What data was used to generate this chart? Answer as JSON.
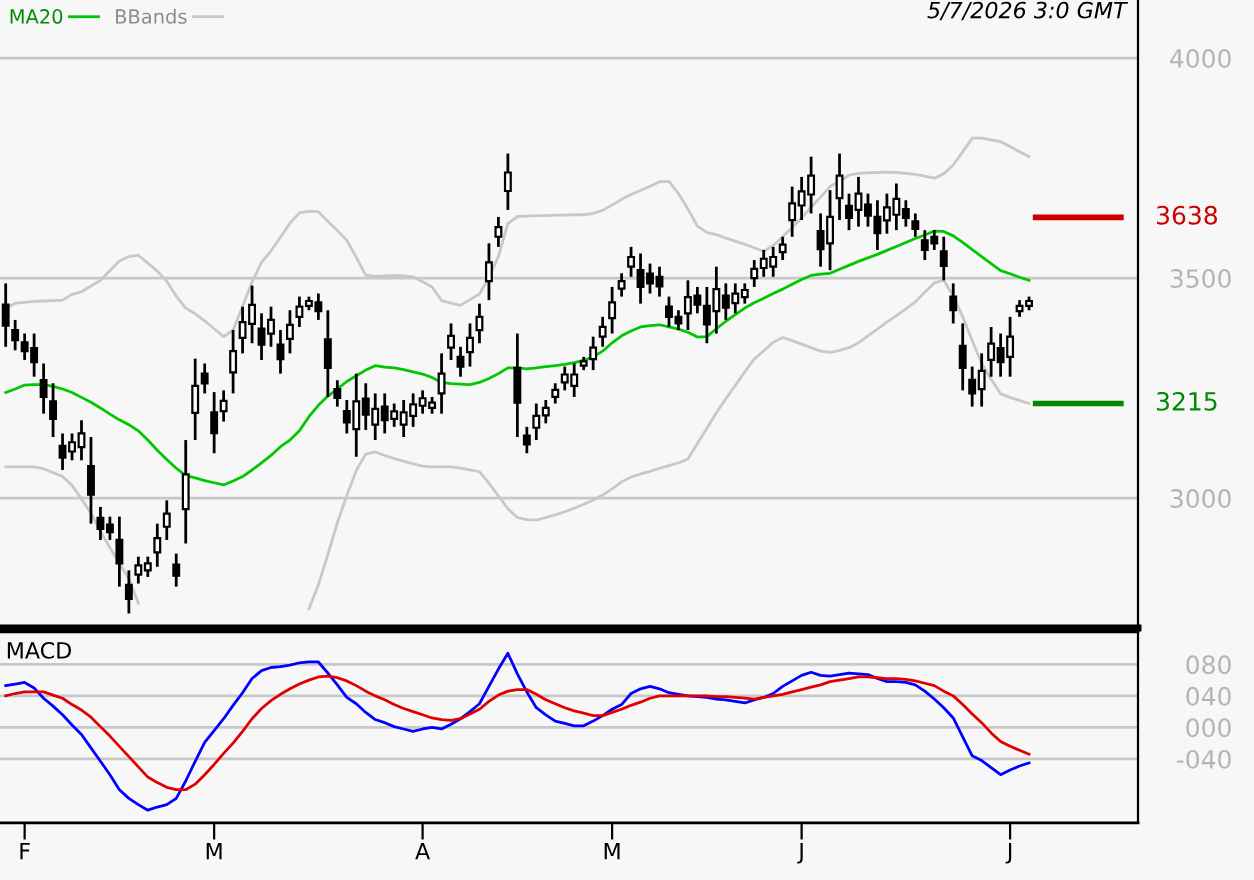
{
  "chart_data": [
    {
      "type": "candlestick",
      "categories": [
        null,
        null,
        null,
        null,
        null,
        null,
        null,
        null,
        null,
        null,
        null,
        null,
        null,
        null,
        null,
        null,
        null,
        null,
        null,
        null,
        null,
        null,
        null,
        null,
        null,
        null,
        null,
        null,
        null,
        null,
        null,
        null,
        null,
        null,
        null,
        null,
        null,
        null,
        null,
        null,
        null,
        null,
        null,
        null,
        null,
        null,
        null,
        null,
        null,
        null,
        null,
        null,
        null,
        null,
        null,
        null,
        null,
        null,
        null,
        null,
        null,
        null,
        null,
        null,
        null,
        null,
        null,
        null,
        null,
        null,
        null,
        null,
        null,
        null,
        null,
        null,
        null,
        null,
        null,
        null,
        null,
        null,
        null,
        null,
        null,
        null,
        null,
        null,
        null,
        null,
        null,
        null,
        null,
        null,
        null,
        null,
        null,
        null,
        null,
        null,
        null,
        null,
        null,
        null,
        null,
        null,
        null,
        null,
        null
      ],
      "ohlc": [
        [
          3440,
          3488,
          3344,
          3392
        ],
        [
          3382,
          3405,
          3336,
          3359
        ],
        [
          3354,
          3374,
          3314,
          3334
        ],
        [
          3341,
          3374,
          3276,
          3309
        ],
        [
          3268,
          3306,
          3192,
          3230
        ],
        [
          3220,
          3261,
          3139,
          3180
        ],
        [
          3119,
          3147,
          3064,
          3092
        ],
        [
          3106,
          3147,
          3086,
          3127
        ],
        [
          3116,
          3177,
          3086,
          3147
        ],
        [
          3073,
          3139,
          2942,
          3008
        ],
        [
          2955,
          2980,
          2905,
          2930
        ],
        [
          2940,
          2958,
          2905,
          2923
        ],
        [
          2905,
          2958,
          2799,
          2852
        ],
        [
          2803,
          2836,
          2738,
          2771
        ],
        [
          2826,
          2867,
          2806,
          2847
        ],
        [
          2836,
          2867,
          2821,
          2852
        ],
        [
          2877,
          2942,
          2844,
          2909
        ],
        [
          2935,
          2995,
          2905,
          2965
        ],
        [
          2849,
          2874,
          2799,
          2824
        ],
        [
          2975,
          3132,
          2897,
          3054
        ],
        [
          3194,
          3317,
          3132,
          3255
        ],
        [
          3283,
          3306,
          3238,
          3261
        ],
        [
          3195,
          3241,
          3102,
          3148
        ],
        [
          3198,
          3245,
          3174,
          3221
        ],
        [
          3286,
          3382,
          3238,
          3334
        ],
        [
          3364,
          3435,
          3329,
          3400
        ],
        [
          3396,
          3483,
          3352,
          3439
        ],
        [
          3385,
          3420,
          3314,
          3349
        ],
        [
          3374,
          3435,
          3344,
          3405
        ],
        [
          3349,
          3382,
          3283,
          3316
        ],
        [
          3362,
          3427,
          3329,
          3394
        ],
        [
          3412,
          3458,
          3389,
          3435
        ],
        [
          3437,
          3458,
          3427,
          3448
        ],
        [
          3445,
          3465,
          3405,
          3425
        ],
        [
          3361,
          3427,
          3230,
          3296
        ],
        [
          3248,
          3268,
          3208,
          3228
        ],
        [
          3198,
          3223,
          3147,
          3172
        ],
        [
          3157,
          3283,
          3094,
          3220
        ],
        [
          3226,
          3261,
          3155,
          3190
        ],
        [
          3167,
          3238,
          3132,
          3203
        ],
        [
          3208,
          3238,
          3147,
          3177
        ],
        [
          3180,
          3215,
          3162,
          3197
        ],
        [
          3167,
          3223,
          3139,
          3195
        ],
        [
          3187,
          3238,
          3162,
          3213
        ],
        [
          3210,
          3245,
          3192,
          3227
        ],
        [
          3205,
          3230,
          3192,
          3217
        ],
        [
          3238,
          3329,
          3192,
          3283
        ],
        [
          3342,
          3397,
          3314,
          3369
        ],
        [
          3321,
          3344,
          3276,
          3299
        ],
        [
          3332,
          3397,
          3299,
          3364
        ],
        [
          3382,
          3442,
          3352,
          3412
        ],
        [
          3493,
          3579,
          3450,
          3536
        ],
        [
          3594,
          3639,
          3571,
          3616
        ],
        [
          3698,
          3783,
          3655,
          3740
        ],
        [
          3296,
          3374,
          3139,
          3217
        ],
        [
          3142,
          3162,
          3102,
          3122
        ],
        [
          3160,
          3215,
          3132,
          3187
        ],
        [
          3188,
          3223,
          3170,
          3205
        ],
        [
          3230,
          3261,
          3215,
          3246
        ],
        [
          3263,
          3299,
          3245,
          3281
        ],
        [
          3255,
          3306,
          3230,
          3281
        ],
        [
          3301,
          3321,
          3291,
          3311
        ],
        [
          3316,
          3367,
          3291,
          3342
        ],
        [
          3367,
          3412,
          3344,
          3389
        ],
        [
          3409,
          3480,
          3374,
          3445
        ],
        [
          3476,
          3511,
          3458,
          3493
        ],
        [
          3526,
          3571,
          3503,
          3548
        ],
        [
          3518,
          3556,
          3442,
          3480
        ],
        [
          3510,
          3533,
          3465,
          3488
        ],
        [
          3503,
          3526,
          3458,
          3481
        ],
        [
          3435,
          3458,
          3389,
          3412
        ],
        [
          3412,
          3427,
          3382,
          3397
        ],
        [
          3420,
          3495,
          3382,
          3457
        ],
        [
          3460,
          3480,
          3420,
          3440
        ],
        [
          3437,
          3480,
          3352,
          3395
        ],
        [
          3425,
          3526,
          3374,
          3475
        ],
        [
          3460,
          3488,
          3405,
          3433
        ],
        [
          3443,
          3488,
          3420,
          3465
        ],
        [
          3457,
          3488,
          3442,
          3473
        ],
        [
          3500,
          3541,
          3480,
          3521
        ],
        [
          3523,
          3564,
          3503,
          3544
        ],
        [
          3526,
          3571,
          3503,
          3548
        ],
        [
          3559,
          3594,
          3541,
          3576
        ],
        [
          3632,
          3708,
          3594,
          3670
        ],
        [
          3665,
          3730,
          3632,
          3697
        ],
        [
          3690,
          3776,
          3647,
          3733
        ],
        [
          3607,
          3647,
          3526,
          3566
        ],
        [
          3579,
          3700,
          3518,
          3639
        ],
        [
          3682,
          3783,
          3632,
          3733
        ],
        [
          3664,
          3692,
          3609,
          3637
        ],
        [
          3655,
          3730,
          3617,
          3692
        ],
        [
          3667,
          3692,
          3617,
          3642
        ],
        [
          3639,
          3677,
          3564,
          3602
        ],
        [
          3631,
          3692,
          3601,
          3661
        ],
        [
          3644,
          3715,
          3609,
          3680
        ],
        [
          3657,
          3677,
          3617,
          3637
        ],
        [
          3629,
          3647,
          3594,
          3612
        ],
        [
          3586,
          3609,
          3541,
          3564
        ],
        [
          3594,
          3609,
          3564,
          3579
        ],
        [
          3561,
          3594,
          3495,
          3528
        ],
        [
          3458,
          3488,
          3397,
          3427
        ],
        [
          3346,
          3397,
          3245,
          3296
        ],
        [
          3269,
          3299,
          3208,
          3238
        ],
        [
          3248,
          3329,
          3208,
          3289
        ],
        [
          3314,
          3389,
          3276,
          3351
        ],
        [
          3341,
          3374,
          3276,
          3309
        ],
        [
          3321,
          3412,
          3276,
          3367
        ],
        [
          3425,
          3450,
          3412,
          3437
        ],
        [
          3437,
          3458,
          3427,
          3448
        ]
      ],
      "series": [
        {
          "name": "MA20",
          "type": "line",
          "color": "#00c800",
          "values": [
            3240,
            3248,
            3257,
            3258,
            3258,
            3254,
            3248,
            3240,
            3229,
            3218,
            3205,
            3191,
            3178,
            3167,
            3153,
            3132,
            3109,
            3088,
            3068,
            3051,
            3046,
            3040,
            3035,
            3030,
            3039,
            3049,
            3064,
            3080,
            3097,
            3117,
            3132,
            3153,
            3185,
            3211,
            3232,
            3248,
            3265,
            3278,
            3291,
            3301,
            3298,
            3296,
            3292,
            3287,
            3282,
            3274,
            3263,
            3260,
            3259,
            3258,
            3263,
            3272,
            3283,
            3296,
            3296,
            3294,
            3296,
            3299,
            3301,
            3304,
            3308,
            3313,
            3321,
            3334,
            3353,
            3369,
            3380,
            3389,
            3392,
            3394,
            3389,
            3384,
            3377,
            3366,
            3367,
            3385,
            3402,
            3417,
            3432,
            3444,
            3454,
            3465,
            3475,
            3486,
            3497,
            3506,
            3509,
            3511,
            3520,
            3529,
            3538,
            3546,
            3554,
            3563,
            3572,
            3581,
            3590,
            3598,
            3607,
            3606,
            3596,
            3581,
            3565,
            3549,
            3533,
            3517,
            3510,
            3502,
            3495
          ]
        },
        {
          "name": "BBands",
          "type": "line",
          "color": "#c8c8c8",
          "values": [
            3431,
            3443,
            3445,
            3447,
            3448,
            3449,
            3450,
            3463,
            3469,
            3482,
            3495,
            3517,
            3539,
            3549,
            3552,
            3534,
            3516,
            3493,
            3459,
            3432,
            3419,
            3403,
            3385,
            3367,
            3382,
            3436,
            3491,
            3536,
            3562,
            3593,
            3625,
            3648,
            3652,
            3651,
            3629,
            3608,
            3586,
            3547,
            3507,
            3504,
            3505,
            3506,
            3505,
            3503,
            3492,
            3480,
            3449,
            3443,
            3438,
            3451,
            3464,
            3501,
            3549,
            3624,
            3640,
            3641,
            3642,
            3642,
            3643,
            3643,
            3644,
            3644,
            3647,
            3654,
            3666,
            3679,
            3690,
            3699,
            3709,
            3719,
            3720,
            3692,
            3657,
            3618,
            3604,
            3599,
            3591,
            3584,
            3577,
            3569,
            3561,
            3574,
            3594,
            3615,
            3637,
            3661,
            3684,
            3708,
            3720,
            3734,
            3738,
            3739,
            3740,
            3741,
            3740,
            3738,
            3736,
            3732,
            3727,
            3737,
            3757,
            3787,
            3818,
            3818,
            3814,
            3810,
            3799,
            3787,
            3776
          ]
        },
        {
          "type": "line",
          "color": "#c8c8c8",
          "values": [
            3071,
            3071,
            3071,
            3071,
            3067,
            3058,
            3049,
            3029,
            2998,
            2966,
            2925,
            2887,
            2852,
            2817,
            2761,
            null,
            null,
            null,
            null,
            null,
            null,
            null,
            null,
            null,
            null,
            null,
            null,
            null,
            null,
            null,
            null,
            null,
            2748,
            2803,
            2872,
            2944,
            3006,
            3063,
            3100,
            3105,
            3097,
            3090,
            3084,
            3078,
            3073,
            3071,
            3071,
            3071,
            3068,
            3064,
            3060,
            3034,
            3005,
            2976,
            2956,
            2951,
            2950,
            2956,
            2962,
            2969,
            2977,
            2986,
            2996,
            3007,
            3021,
            3037,
            3048,
            3055,
            3061,
            3068,
            3074,
            3080,
            3089,
            3124,
            3159,
            3194,
            3226,
            3256,
            3287,
            3316,
            3335,
            3354,
            3365,
            3358,
            3350,
            3342,
            3334,
            3331,
            3336,
            3342,
            3353,
            3369,
            3384,
            3400,
            3415,
            3430,
            3446,
            3468,
            3489,
            3495,
            3460,
            3412,
            3358,
            3306,
            3270,
            3237,
            3229,
            3222,
            3215
          ]
        }
      ],
      "ylim": [
        2705,
        4132
      ],
      "yticks": [
        3000,
        3500,
        4000
      ],
      "grid": "y",
      "legend": "top left",
      "tick_labels": "y",
      "ref_lines": [
        {
          "axis": "y",
          "value": 3638,
          "label": "3638",
          "color": "#cc0000"
        },
        {
          "axis": "y",
          "value": 3215,
          "label": "3215",
          "color": "#008800"
        }
      ],
      "annotations": [
        "5/7/2026 3:0 GMT"
      ]
    },
    {
      "type": "line",
      "title": "MACD",
      "series": [
        {
          "color": "#0000ff",
          "values": [
            53,
            55,
            57,
            50,
            37,
            27,
            16,
            3,
            -9,
            -26,
            -43,
            -60,
            -79,
            -90,
            -98,
            -105,
            -101,
            -98,
            -90,
            -68,
            -43,
            -19,
            -4,
            11,
            28,
            44,
            62,
            72,
            76,
            77,
            79,
            82,
            83,
            83,
            69,
            54,
            38,
            30,
            19,
            10,
            6,
            1,
            -2,
            -5,
            -2,
            0,
            -2,
            4,
            11,
            20,
            30,
            52,
            74,
            94,
            68,
            45,
            25,
            16,
            8,
            5,
            2,
            2,
            8,
            15,
            23,
            29,
            43,
            49,
            52,
            49,
            44,
            42,
            40,
            39,
            38,
            36,
            35,
            33,
            31,
            35,
            38,
            43,
            52,
            59,
            66,
            70,
            66,
            65,
            67,
            69,
            68,
            67,
            62,
            58,
            58,
            57,
            54,
            46,
            36,
            25,
            12,
            -12,
            -36,
            -42,
            -51,
            -60,
            -54,
            -49,
            -45
          ]
        },
        {
          "color": "#e00000",
          "values": [
            40,
            43,
            45,
            45,
            45,
            41,
            37,
            29,
            22,
            13,
            1,
            -11,
            -24,
            -37,
            -50,
            -63,
            -70,
            -76,
            -79,
            -79,
            -72,
            -60,
            -47,
            -33,
            -20,
            -5,
            11,
            24,
            34,
            42,
            49,
            55,
            60,
            64,
            65,
            63,
            59,
            53,
            46,
            40,
            35,
            29,
            24,
            20,
            16,
            12,
            10,
            9,
            11,
            17,
            23,
            33,
            41,
            46,
            48,
            48,
            42,
            35,
            30,
            25,
            21,
            18,
            15,
            15,
            19,
            23,
            28,
            32,
            37,
            40,
            40,
            40,
            40,
            40,
            40,
            39,
            39,
            38,
            37,
            36,
            38,
            40,
            42,
            45,
            48,
            51,
            54,
            58,
            60,
            62,
            64,
            64,
            63,
            62,
            62,
            61,
            59,
            56,
            53,
            46,
            40,
            29,
            17,
            6,
            -7,
            -18,
            -24,
            -29,
            -34
          ]
        }
      ],
      "categories": [
        null,
        null,
        "F",
        null,
        null,
        null,
        null,
        null,
        null,
        null,
        null,
        null,
        null,
        null,
        null,
        null,
        null,
        null,
        null,
        null,
        null,
        null,
        "M",
        null,
        null,
        null,
        null,
        null,
        null,
        null,
        null,
        null,
        null,
        null,
        null,
        null,
        null,
        null,
        null,
        null,
        null,
        null,
        null,
        null,
        "A",
        null,
        null,
        null,
        null,
        null,
        null,
        null,
        null,
        null,
        null,
        null,
        null,
        null,
        null,
        null,
        null,
        null,
        null,
        null,
        "M",
        null,
        null,
        null,
        null,
        null,
        null,
        null,
        null,
        null,
        null,
        null,
        null,
        null,
        null,
        null,
        null,
        null,
        null,
        null,
        "J",
        null,
        null,
        null,
        null,
        null,
        null,
        null,
        null,
        null,
        null,
        null,
        null,
        null,
        null,
        null,
        null,
        null,
        null,
        null,
        null,
        null,
        "J",
        null,
        null
      ],
      "ylim": [
        -121,
        121
      ],
      "yticks": [
        {
          "value": -40,
          "label": "-040"
        },
        {
          "value": 0,
          "label": "000"
        },
        {
          "value": 40,
          "label": "040"
        },
        {
          "value": 80,
          "label": "080"
        }
      ],
      "grid": "y"
    }
  ]
}
